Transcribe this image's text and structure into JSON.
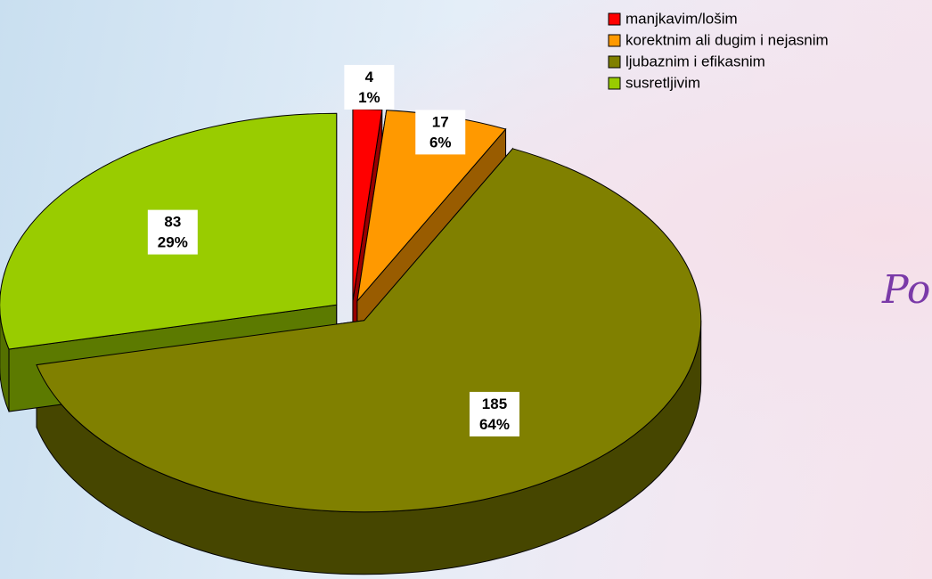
{
  "chart_data": {
    "type": "pie3d",
    "categories": [
      "manjkavim/lošim",
      "korektnim ali dugim i nejasnim",
      "ljubaznim i efikasnim",
      "susretljivim"
    ],
    "values": [
      4,
      17,
      185,
      83
    ],
    "percentages": [
      1,
      6,
      64,
      29
    ],
    "percentage_labels": [
      "1%",
      "6%",
      "64%",
      "29%"
    ],
    "colors": [
      "#ff0000",
      "#ff9900",
      "#808000",
      "#99cc00"
    ],
    "legend": "top-right",
    "annotation": "Po"
  }
}
